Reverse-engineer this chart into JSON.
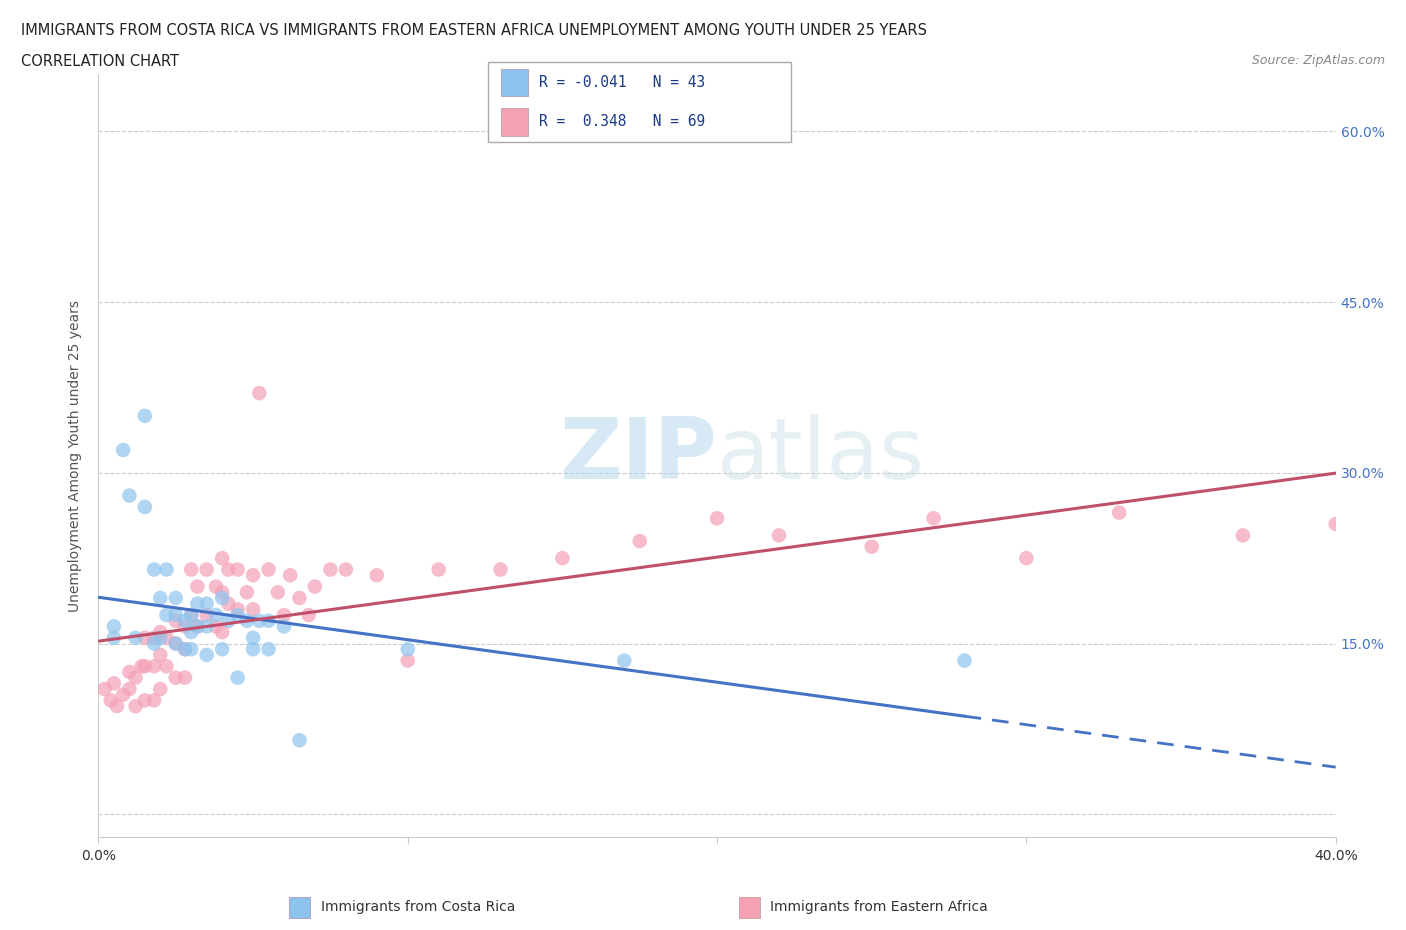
{
  "title_line1": "IMMIGRANTS FROM COSTA RICA VS IMMIGRANTS FROM EASTERN AFRICA UNEMPLOYMENT AMONG YOUTH UNDER 25 YEARS",
  "title_line2": "CORRELATION CHART",
  "source_text": "Source: ZipAtlas.com",
  "ylabel": "Unemployment Among Youth under 25 years",
  "xlim": [
    0.0,
    0.4
  ],
  "ylim": [
    -0.02,
    0.65
  ],
  "x_ticks": [
    0.0,
    0.1,
    0.2,
    0.3,
    0.4
  ],
  "x_tick_labels": [
    "0.0%",
    "",
    "",
    "",
    "40.0%"
  ],
  "y_tick_labels_right": [
    "",
    "15.0%",
    "30.0%",
    "45.0%",
    "60.0%"
  ],
  "y_ticks": [
    0.0,
    0.15,
    0.3,
    0.45,
    0.6
  ],
  "legend_label1": "Immigrants from Costa Rica",
  "legend_label2": "Immigrants from Eastern Africa",
  "R1": "-0.041",
  "N1": "43",
  "R2": "0.348",
  "N2": "69",
  "color1": "#8DC4EE",
  "color2": "#F4A0B5",
  "line_color1": "#4472C4",
  "line_color2": "#C0506A",
  "watermark": "ZIPatlas",
  "costa_rica_x": [
    0.005,
    0.005,
    0.008,
    0.01,
    0.012,
    0.015,
    0.015,
    0.018,
    0.018,
    0.02,
    0.02,
    0.022,
    0.022,
    0.025,
    0.025,
    0.025,
    0.028,
    0.028,
    0.03,
    0.03,
    0.03,
    0.032,
    0.032,
    0.035,
    0.035,
    0.035,
    0.038,
    0.04,
    0.04,
    0.042,
    0.045,
    0.045,
    0.048,
    0.05,
    0.05,
    0.052,
    0.055,
    0.055,
    0.06,
    0.065,
    0.1,
    0.17,
    0.28
  ],
  "costa_rica_y": [
    0.165,
    0.155,
    0.32,
    0.28,
    0.155,
    0.35,
    0.27,
    0.215,
    0.15,
    0.19,
    0.155,
    0.215,
    0.175,
    0.19,
    0.175,
    0.15,
    0.17,
    0.145,
    0.175,
    0.16,
    0.145,
    0.185,
    0.165,
    0.185,
    0.165,
    0.14,
    0.175,
    0.19,
    0.145,
    0.17,
    0.175,
    0.12,
    0.17,
    0.155,
    0.145,
    0.17,
    0.17,
    0.145,
    0.165,
    0.065,
    0.145,
    0.135,
    0.135
  ],
  "eastern_africa_x": [
    0.002,
    0.004,
    0.005,
    0.006,
    0.008,
    0.01,
    0.01,
    0.012,
    0.012,
    0.014,
    0.015,
    0.015,
    0.015,
    0.018,
    0.018,
    0.018,
    0.02,
    0.02,
    0.02,
    0.022,
    0.022,
    0.025,
    0.025,
    0.025,
    0.028,
    0.028,
    0.028,
    0.03,
    0.03,
    0.032,
    0.032,
    0.035,
    0.035,
    0.038,
    0.038,
    0.04,
    0.04,
    0.04,
    0.042,
    0.042,
    0.045,
    0.045,
    0.048,
    0.05,
    0.05,
    0.052,
    0.055,
    0.058,
    0.06,
    0.062,
    0.065,
    0.068,
    0.07,
    0.075,
    0.08,
    0.09,
    0.1,
    0.11,
    0.13,
    0.15,
    0.175,
    0.2,
    0.22,
    0.25,
    0.27,
    0.3,
    0.33,
    0.37,
    0.4
  ],
  "eastern_africa_y": [
    0.11,
    0.1,
    0.115,
    0.095,
    0.105,
    0.125,
    0.11,
    0.12,
    0.095,
    0.13,
    0.155,
    0.13,
    0.1,
    0.155,
    0.13,
    0.1,
    0.16,
    0.14,
    0.11,
    0.155,
    0.13,
    0.17,
    0.15,
    0.12,
    0.165,
    0.145,
    0.12,
    0.215,
    0.175,
    0.2,
    0.165,
    0.215,
    0.175,
    0.2,
    0.165,
    0.225,
    0.195,
    0.16,
    0.215,
    0.185,
    0.215,
    0.18,
    0.195,
    0.21,
    0.18,
    0.37,
    0.215,
    0.195,
    0.175,
    0.21,
    0.19,
    0.175,
    0.2,
    0.215,
    0.215,
    0.21,
    0.135,
    0.215,
    0.215,
    0.225,
    0.24,
    0.26,
    0.245,
    0.235,
    0.26,
    0.225,
    0.265,
    0.245,
    0.255
  ]
}
